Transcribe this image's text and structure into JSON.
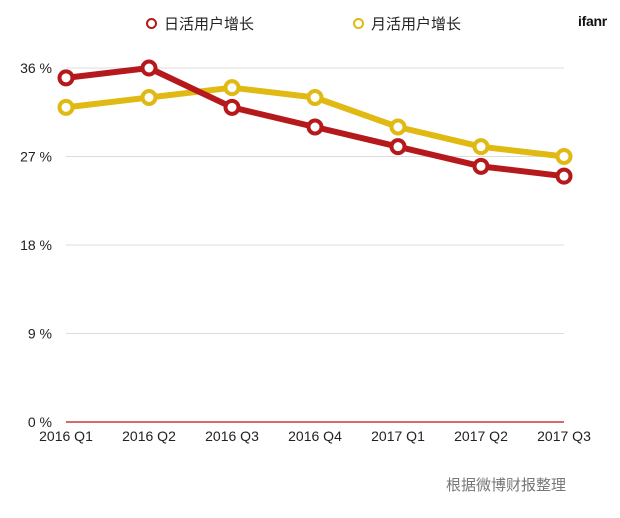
{
  "brand": "ifanr",
  "source_note": "根据微博财报整理",
  "colors": {
    "dau": "#b5191c",
    "mau": "#e0b912",
    "grid": "#dcdcdc",
    "baseline": "#c9383a",
    "text": "#222222"
  },
  "chart_data": {
    "type": "line",
    "title": "",
    "xlabel": "",
    "ylabel": "",
    "categories": [
      "2016 Q1",
      "2016 Q2",
      "2016 Q3",
      "2016 Q4",
      "2017 Q1",
      "2017 Q2",
      "2017 Q3"
    ],
    "y_ticks": [
      0,
      9,
      18,
      27,
      36
    ],
    "y_tick_labels": [
      "0 %",
      "9 %",
      "18 %",
      "27 %",
      "36 %"
    ],
    "ylim": [
      0,
      36
    ],
    "grid": true,
    "legend_position": "top-center",
    "series": [
      {
        "name": "日活用户增长",
        "color_key": "dau",
        "values": [
          35,
          36,
          32,
          30,
          28,
          26,
          25
        ]
      },
      {
        "name": "月活用户增长",
        "color_key": "mau",
        "values": [
          32,
          33,
          34,
          33,
          30,
          28,
          27
        ]
      }
    ]
  }
}
